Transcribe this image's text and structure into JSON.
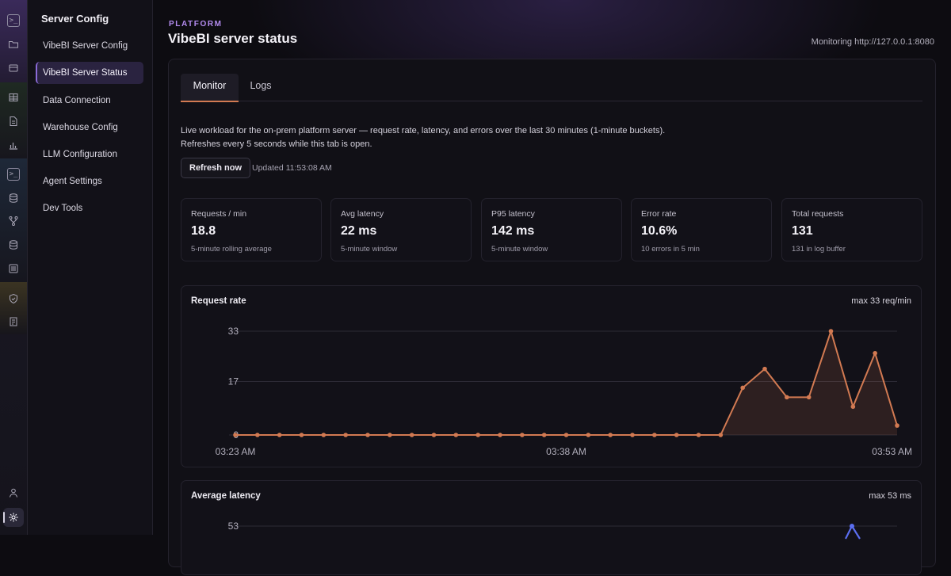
{
  "sidebar": {
    "title": "Server Config",
    "items": [
      {
        "label": "VibeBI Server Config"
      },
      {
        "label": "VibeBI Server Status"
      },
      {
        "label": "Data Connection"
      },
      {
        "label": "Warehouse Config"
      },
      {
        "label": "LLM Configuration"
      },
      {
        "label": "Agent Settings"
      },
      {
        "label": "Dev Tools"
      }
    ]
  },
  "rail_icons": [
    "terminal-icon",
    "folder-icon",
    "archive-icon",
    "table-icon",
    "document-icon",
    "bar-chart-icon",
    "terminal-icon",
    "database-icon",
    "git-branch-icon",
    "database-icon",
    "list-icon",
    "shield-icon",
    "notebook-icon",
    "user-icon",
    "gear-icon"
  ],
  "header": {
    "kicker": "PLATFORM",
    "title": "VibeBI server status",
    "monitoring": "Monitoring http://127.0.0.1:8080"
  },
  "tabs": [
    {
      "label": "Monitor"
    },
    {
      "label": "Logs"
    }
  ],
  "description": "Live workload for the on-prem platform server — request rate, latency, and errors over the last 30 minutes (1-minute buckets). Refreshes every 5 seconds while this tab is open.",
  "refresh": {
    "label": "Refresh now",
    "updated": "Updated 11:53:08 AM"
  },
  "stats": [
    {
      "label": "Requests / min",
      "value": "18.8",
      "sub": "5-minute rolling average"
    },
    {
      "label": "Avg latency",
      "value": "22 ms",
      "sub": "5-minute window"
    },
    {
      "label": "P95 latency",
      "value": "142 ms",
      "sub": "5-minute window"
    },
    {
      "label": "Error rate",
      "value": "10.6%",
      "sub": "10 errors in 5 min"
    },
    {
      "label": "Total requests",
      "value": "131",
      "sub": "131 in log buffer"
    }
  ],
  "charts": {
    "request_rate": {
      "title": "Request rate",
      "max_label": "max 33 req/min"
    },
    "avg_latency": {
      "title": "Average latency",
      "max_label": "max 53 ms"
    }
  },
  "colors": {
    "accent": "#b48cf0",
    "request_line": "#d27a52",
    "latency_line": "#5b6ef0"
  },
  "chart_data": [
    {
      "type": "area",
      "title": "Request rate",
      "x": [
        "03:23 AM",
        "",
        "",
        "",
        "",
        "",
        "",
        "",
        "",
        "",
        "",
        "",
        "",
        "",
        "",
        "03:38 AM",
        "",
        "",
        "",
        "",
        "",
        "",
        "",
        "",
        "",
        "",
        "",
        "",
        "",
        "",
        "03:53 AM"
      ],
      "x_tick_labels": [
        "03:23 AM",
        "03:38 AM",
        "03:53 AM"
      ],
      "y_ticks": [
        0,
        17,
        33
      ],
      "ylim": [
        0,
        33
      ],
      "series": [
        {
          "values": [
            0,
            0,
            0,
            0,
            0,
            0,
            0,
            0,
            0,
            0,
            0,
            0,
            0,
            0,
            0,
            0,
            0,
            0,
            0,
            0,
            0,
            0,
            0,
            15,
            21,
            12,
            12,
            33,
            9,
            26,
            3
          ]
        }
      ],
      "grid": true
    },
    {
      "type": "line",
      "title": "Average latency",
      "y_ticks": [
        53
      ],
      "ylim": [
        0,
        53
      ],
      "series": [
        {
          "values_visible_note": "",
          "peak": 53
        }
      ],
      "grid": true
    }
  ]
}
